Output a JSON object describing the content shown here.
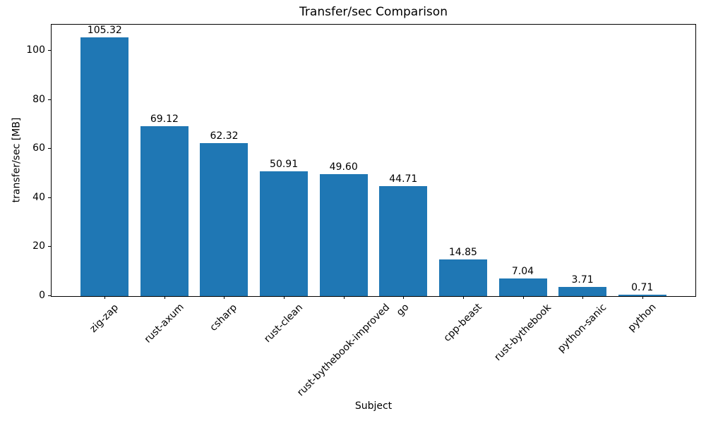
{
  "chart_data": {
    "type": "bar",
    "title": "Transfer/sec Comparison",
    "xlabel": "Subject",
    "ylabel": "transfer/sec [MB]",
    "categories": [
      "zig-zap",
      "rust-axum",
      "csharp",
      "rust-clean",
      "rust-bythebook-improved",
      "go",
      "cpp-beast",
      "rust-bythebook",
      "python-sanic",
      "python"
    ],
    "values": [
      105.32,
      69.12,
      62.32,
      50.91,
      49.6,
      44.71,
      14.85,
      7.04,
      3.71,
      0.71
    ],
    "bar_labels": [
      "105.32",
      "69.12",
      "62.32",
      "50.91",
      "49.60",
      "44.71",
      "14.85",
      "7.04",
      "3.71",
      "0.71"
    ],
    "yticks": [
      0,
      20,
      40,
      60,
      80,
      100
    ],
    "ylim": [
      0,
      110.6
    ],
    "bar_color": "#1f77b4",
    "axis_color": "#000000",
    "text_color": "#000000",
    "background_color": "#ffffff",
    "grid": false,
    "x_tick_rotation_deg": 45,
    "legend": "none"
  }
}
